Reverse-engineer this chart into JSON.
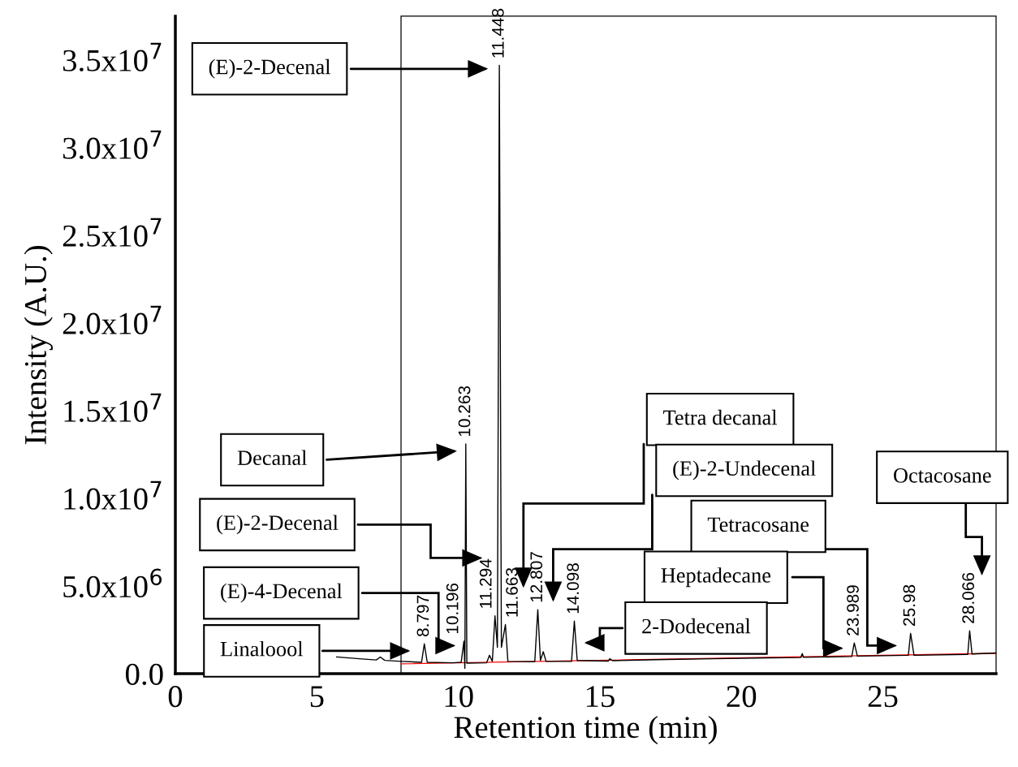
{
  "chart_data": {
    "type": "line",
    "xlabel": "Retention time (min)",
    "ylabel": "Intensity (A.U.)",
    "xlim": [
      0,
      29
    ],
    "ylim": [
      0,
      37500000
    ],
    "xticks": [
      0,
      5,
      10,
      15,
      20,
      25
    ],
    "yticks": [
      {
        "value": 0,
        "label": "0.0"
      },
      {
        "value": 5000000,
        "label": "5.0x10$^{6}$"
      },
      {
        "value": 10000000,
        "label": "1.0x10$^{7}$"
      },
      {
        "value": 15000000,
        "label": "1.5x10$^{7}$"
      },
      {
        "value": 20000000,
        "label": "2.0x10$^{7}$"
      },
      {
        "value": 25000000,
        "label": "2.5x10$^{7}$"
      },
      {
        "value": 30000000,
        "label": "3.0x10$^{7}$"
      },
      {
        "value": 35000000,
        "label": "3.5x10$^{7}$"
      }
    ],
    "grid": false,
    "legend": false,
    "marker": "none",
    "line_style": "solid",
    "series": [
      {
        "color": "#000000",
        "x": [
          5.7,
          6.5,
          7.1,
          7.24,
          7.4,
          8.0,
          8.7,
          8.797,
          8.9,
          9.8,
          10.1,
          10.196,
          10.23,
          10.263,
          10.3,
          11.0,
          11.1,
          11.2,
          11.294,
          11.38,
          11.448,
          11.52,
          11.663,
          11.75,
          12.7,
          12.807,
          12.9,
          13.0,
          13.1,
          14.0,
          14.098,
          14.2,
          15.3,
          15.35,
          15.45,
          17,
          19,
          21,
          22.1,
          22.15,
          22.2,
          23.9,
          23.989,
          24.1,
          25.9,
          25.98,
          26.1,
          28.0,
          28.066,
          28.15,
          29
        ],
        "values": [
          950000,
          850000,
          780000,
          950000,
          760000,
          700000,
          650000,
          1700000,
          650000,
          620000,
          650000,
          1850000,
          300000,
          13100000,
          600000,
          620000,
          1050000,
          700000,
          3300000,
          1500000,
          34700000,
          1500000,
          2800000,
          700000,
          680000,
          3650000,
          750000,
          1250000,
          700000,
          700000,
          3000000,
          750000,
          720000,
          850000,
          740000,
          800000,
          850000,
          900000,
          920000,
          1150000,
          930000,
          980000,
          1750000,
          1000000,
          1050000,
          2300000,
          1050000,
          1100000,
          2450000,
          1120000,
          1180000
        ]
      },
      {
        "type": "line",
        "color": "#ff0000",
        "x": [
          8,
          29
        ],
        "values": [
          560000,
          1160000
        ]
      }
    ],
    "annotations": [
      "(E)-2-Decenal",
      "Decanal",
      "(E)-2-Decenal",
      "(E)-4-Decenal",
      "Linaloool",
      "Tetra decanal",
      "(E)-2-Undecenal",
      "Octacosane",
      "Tetracosane",
      "Heptadecane",
      "2-Dodecenal",
      {
        "text": "8.797",
        "x": 8.797,
        "y": 1700000
      },
      {
        "text": "10.196",
        "x": 10.196,
        "y": 1850000
      },
      {
        "text": "10.263",
        "x": 10.263,
        "y": 13100000
      },
      {
        "text": "11.294",
        "x": 11.294,
        "y": 3300000
      },
      {
        "text": "11.448",
        "x": 11.448,
        "y": 34700000
      },
      {
        "text": "11.663",
        "x": 11.663,
        "y": 2800000
      },
      {
        "text": "12.807",
        "x": 12.807,
        "y": 3650000
      },
      {
        "text": "14.098",
        "x": 14.098,
        "y": 3000000
      },
      {
        "text": "23.989",
        "x": 23.989,
        "y": 1750000
      },
      {
        "text": "25.98",
        "x": 25.98,
        "y": 2300000
      },
      {
        "text": "28.066",
        "x": 28.066,
        "y": 2450000
      }
    ]
  }
}
